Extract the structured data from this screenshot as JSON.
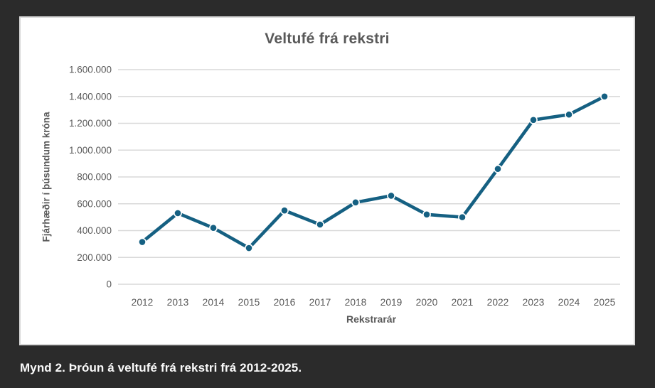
{
  "page": {
    "background_color": "#2b2b2b",
    "caption": "Mynd 2. Þróun á veltufé frá rekstri frá 2012-2025."
  },
  "chart_data": {
    "type": "line",
    "title": "Veltufé frá rekstri",
    "xlabel": "Rekstrarár",
    "ylabel": "Fjárhæðir í þúsundum króna",
    "categories": [
      "2012",
      "2013",
      "2014",
      "2015",
      "2016",
      "2017",
      "2018",
      "2019",
      "2020",
      "2021",
      "2022",
      "2023",
      "2024",
      "2025"
    ],
    "series": [
      {
        "name": "Veltufé frá rekstri",
        "values": [
          315000,
          530000,
          420000,
          270000,
          550000,
          445000,
          610000,
          660000,
          520000,
          500000,
          860000,
          1225000,
          1265000,
          1400000
        ]
      }
    ],
    "ylim": [
      0,
      1600000
    ],
    "ytick_step": 200000,
    "ytick_labels": [
      "0",
      "200.000",
      "400.000",
      "600.000",
      "800.000",
      "1.000.000",
      "1.200.000",
      "1.400.000",
      "1.600.000"
    ],
    "grid": true,
    "legend_position": "none",
    "colors": {
      "line": "#156082",
      "marker_fill": "#156082",
      "marker_edge": "#ffffff",
      "gridline": "#d9d9d9",
      "axis_text": "#595959",
      "title_text": "#595959",
      "card_background": "#ffffff",
      "card_border": "#d9d9d9"
    }
  }
}
